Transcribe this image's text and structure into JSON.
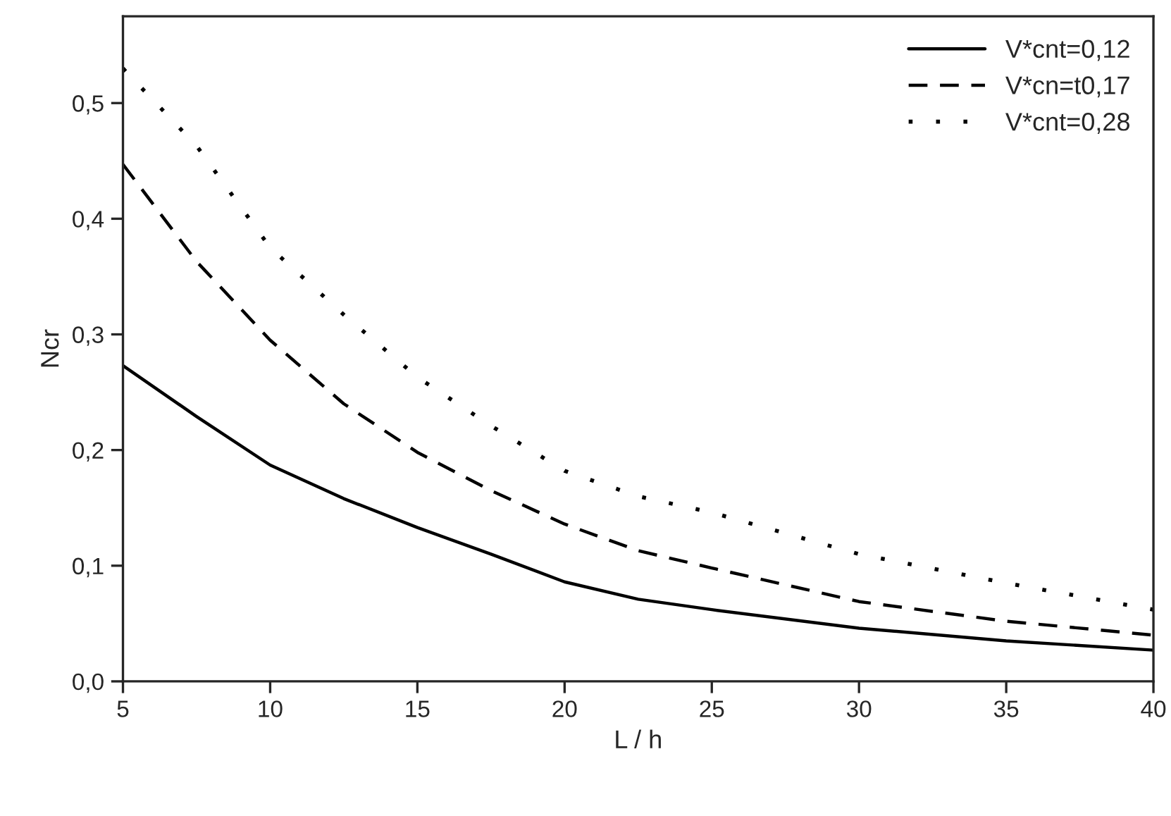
{
  "chart_data": {
    "type": "line",
    "xlabel": "L / h",
    "ylabel": "Ncr",
    "x": [
      5,
      7.5,
      10,
      12.5,
      15,
      17.5,
      20,
      22.5,
      25,
      30,
      35,
      40
    ],
    "series": [
      {
        "name": "V*cnt=0,12",
        "color": "#000000",
        "line_style": "solid",
        "values": [
          0.273,
          0.229,
          0.187,
          0.158,
          0.133,
          0.11,
          0.086,
          0.071,
          0.062,
          0.046,
          0.035,
          0.027
        ]
      },
      {
        "name": "V*cn=t0,17",
        "color": "#000000",
        "line_style": "dashed",
        "values": [
          0.447,
          0.363,
          0.295,
          0.24,
          0.198,
          0.165,
          0.136,
          0.113,
          0.098,
          0.069,
          0.052,
          0.04
        ]
      },
      {
        "name": "V*cnt=0,28",
        "color": "#000000",
        "line_style": "dotted",
        "values": [
          0.53,
          0.463,
          0.375,
          0.317,
          0.263,
          0.221,
          0.182,
          0.16,
          0.146,
          0.11,
          0.085,
          0.062
        ]
      }
    ],
    "xlim": [
      5,
      40
    ],
    "xticks": [
      5,
      10,
      15,
      20,
      25,
      30,
      35,
      40
    ],
    "ylim": [
      0,
      0.575
    ],
    "yticks": [
      {
        "value": 0,
        "label": "0,0"
      },
      {
        "value": 0.1,
        "label": "0,1"
      },
      {
        "value": 0.2,
        "label": "0,2"
      },
      {
        "value": 0.3,
        "label": "0,3"
      },
      {
        "value": 0.4,
        "label": "0,4"
      },
      {
        "value": 0.5,
        "label": "0,5"
      }
    ],
    "grid": false,
    "legend": "top right"
  }
}
